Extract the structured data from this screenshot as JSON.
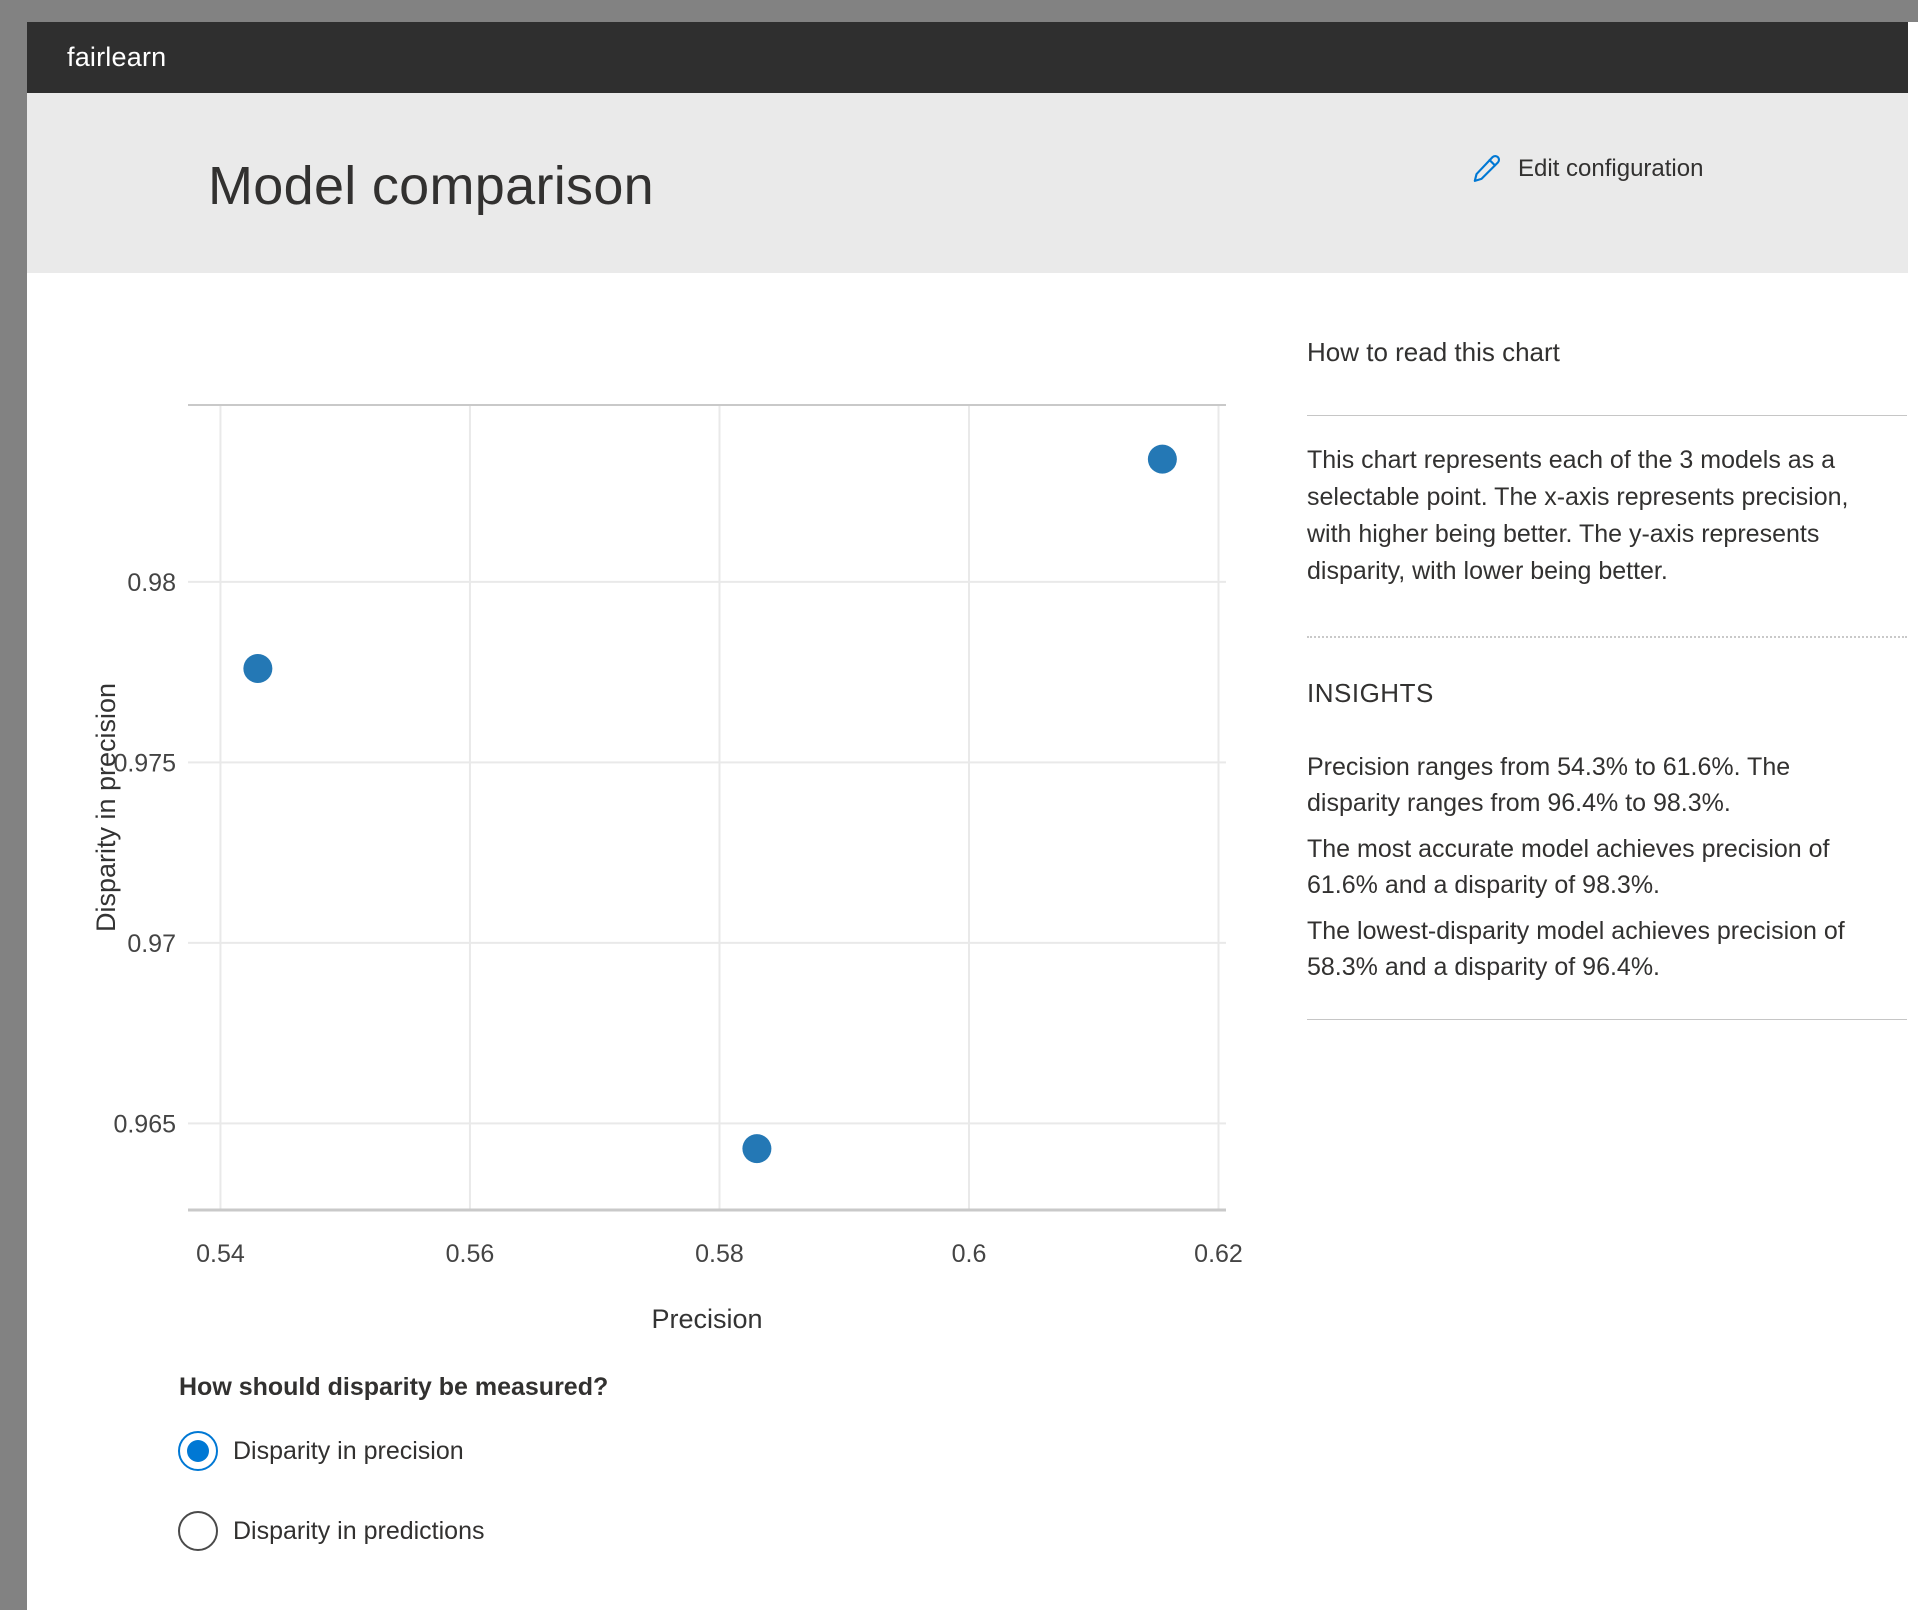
{
  "topbar": {
    "brand": "fairlearn"
  },
  "header": {
    "title": "Model comparison",
    "edit_button": "Edit configuration"
  },
  "right_panel": {
    "how_to_title": "How to read this chart",
    "how_to_body": "This chart represents each of the 3 models as a selectable point. The x-axis represents precision, with higher being better. The y-axis represents disparity, with lower being better.",
    "insights_title": "INSIGHTS",
    "insights": [
      "Precision ranges from 54.3% to 61.6%. The disparity ranges from 96.4% to 98.3%.",
      "The most accurate model achieves precision of 61.6% and a disparity of 98.3%.",
      "The lowest-disparity model achieves precision of 58.3% and a disparity of 96.4%."
    ]
  },
  "disparity_question": {
    "label": "How should disparity be measured?",
    "options": [
      {
        "label": "Disparity in precision",
        "selected": true
      },
      {
        "label": "Disparity in predictions",
        "selected": false
      }
    ]
  },
  "chart_data": {
    "type": "scatter",
    "title": "",
    "xlabel": "Precision",
    "ylabel": "Disparity in precision",
    "x_ticks": [
      0.54,
      0.56,
      0.58,
      0.6,
      0.62
    ],
    "y_ticks": [
      0.965,
      0.97,
      0.975,
      0.98
    ],
    "xlim": [
      0.5374,
      0.6206
    ],
    "ylim": [
      0.9626,
      0.9849
    ],
    "grid": true,
    "legend": "none",
    "point_color": "#2478b5",
    "points": [
      {
        "precision": 0.543,
        "disparity": 0.9776
      },
      {
        "precision": 0.583,
        "disparity": 0.9643
      },
      {
        "precision": 0.6155,
        "disparity": 0.9834
      }
    ]
  },
  "colors": {
    "frame": "#828282",
    "topbar_bg": "#2f2f2f",
    "header_bg": "#eaeaea",
    "accent_blue": "#0078d4",
    "text": "#323130",
    "gridline": "#e9e9e9",
    "axis_line": "#c9c9c9"
  }
}
